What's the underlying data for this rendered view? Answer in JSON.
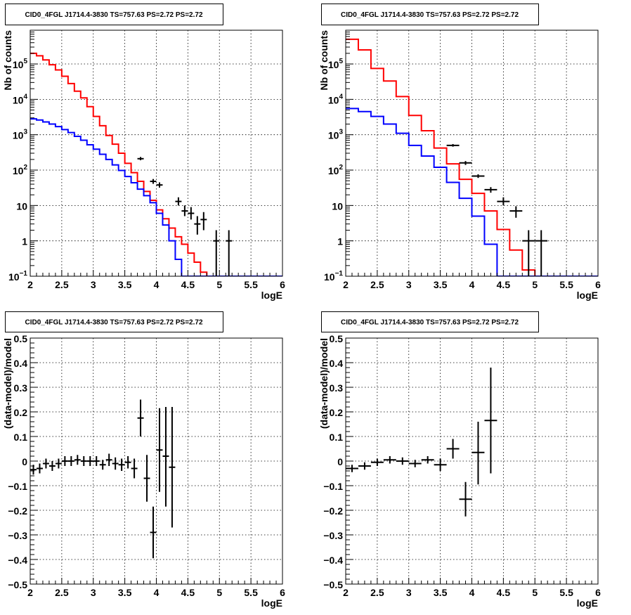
{
  "chart_data": [
    {
      "type": "line",
      "title": "CID0_4FGL J1714.4-3830 TS=757.63 PS=2.72 PS=2.72",
      "xlabel": "logE",
      "ylabel": "Nb of counts",
      "xlim": [
        2,
        6
      ],
      "ylim": [
        0.1,
        900000
      ],
      "yscale": "log",
      "grid": true,
      "x_ticks": [
        "2",
        "2.5",
        "3",
        "3.5",
        "4",
        "4.5",
        "5",
        "5.5",
        "6"
      ],
      "y_ticks": [
        {
          "value": 0.1,
          "base": "10",
          "exp": "−1"
        },
        {
          "value": 1,
          "base": "1",
          "exp": ""
        },
        {
          "value": 10,
          "base": "10",
          "exp": ""
        },
        {
          "value": 100,
          "base": "10",
          "exp": "2"
        },
        {
          "value": 1000,
          "base": "10",
          "exp": "3"
        },
        {
          "value": 10000,
          "base": "10",
          "exp": "4"
        },
        {
          "value": 100000,
          "base": "10",
          "exp": "5"
        }
      ],
      "bin_width": 0.1,
      "series": [
        {
          "kind": "step",
          "color": "#ff0000",
          "values": [
            200000,
            170000,
            130000,
            95000,
            68000,
            45000,
            28000,
            17000,
            11000,
            6200,
            3300,
            1800,
            950,
            540,
            300,
            155,
            85,
            48,
            25,
            14,
            7.5,
            4.2,
            2.3,
            1.3,
            0.8,
            0.45,
            0.25,
            0.13,
            0.1,
            0.1,
            0.1,
            0.1,
            0.1,
            0.1,
            0.1,
            0.1,
            0.1,
            0.1,
            0.1,
            0.1
          ]
        },
        {
          "kind": "step",
          "color": "#0000ff",
          "values": [
            2800,
            2600,
            2300,
            2000,
            1700,
            1400,
            1150,
            900,
            700,
            520,
            390,
            280,
            200,
            140,
            98,
            66,
            44,
            29,
            19,
            12,
            6,
            2.8,
            1.0,
            0.3,
            0.1,
            0.1,
            0.1,
            0.1,
            0.1,
            0.1,
            0.1,
            0.1,
            0.1,
            0.1,
            0.1,
            0.1,
            0.1,
            0.1,
            0.1,
            0.1
          ]
        },
        {
          "kind": "points",
          "color": "#000000",
          "points": [
            {
              "x": 3.75,
              "y": 210,
              "lo": 190,
              "hi": 235
            },
            {
              "x": 3.95,
              "y": 48,
              "lo": 41,
              "hi": 56
            },
            {
              "x": 4.05,
              "y": 38,
              "lo": 32,
              "hi": 45
            },
            {
              "x": 4.35,
              "y": 13,
              "lo": 10,
              "hi": 17
            },
            {
              "x": 4.45,
              "y": 7,
              "lo": 5,
              "hi": 10
            },
            {
              "x": 4.55,
              "y": 6,
              "lo": 4,
              "hi": 9
            },
            {
              "x": 4.65,
              "y": 3,
              "lo": 1.5,
              "hi": 5
            },
            {
              "x": 4.75,
              "y": 4,
              "lo": 2,
              "hi": 6.5
            },
            {
              "x": 4.95,
              "y": 1,
              "lo": 0.1,
              "hi": 2
            },
            {
              "x": 5.15,
              "y": 1,
              "lo": 0.1,
              "hi": 2
            }
          ]
        }
      ]
    },
    {
      "type": "line",
      "title": "CID0_4FGL J1714.4-3830 TS=757.63 PS=2.72 PS=2.72",
      "xlabel": "logE",
      "ylabel": "Nb of counts",
      "xlim": [
        2,
        6
      ],
      "ylim": [
        0.1,
        900000
      ],
      "yscale": "log",
      "grid": true,
      "x_ticks": [
        "2",
        "2.5",
        "3",
        "3.5",
        "4",
        "4.5",
        "5",
        "5.5",
        "6"
      ],
      "y_ticks": [
        {
          "value": 0.1,
          "base": "10",
          "exp": "−1"
        },
        {
          "value": 1,
          "base": "1",
          "exp": ""
        },
        {
          "value": 10,
          "base": "10",
          "exp": ""
        },
        {
          "value": 100,
          "base": "10",
          "exp": "2"
        },
        {
          "value": 1000,
          "base": "10",
          "exp": "3"
        },
        {
          "value": 10000,
          "base": "10",
          "exp": "4"
        },
        {
          "value": 100000,
          "base": "10",
          "exp": "5"
        }
      ],
      "bin_width": 0.2,
      "series": [
        {
          "kind": "step",
          "color": "#ff0000",
          "values": [
            500000,
            250000,
            75000,
            33000,
            12000,
            3500,
            1300,
            420,
            150,
            55,
            22,
            7,
            2.1,
            0.55,
            0.15,
            0.1,
            0.1,
            0.1,
            0.1,
            0.1
          ]
        },
        {
          "kind": "step",
          "color": "#0000ff",
          "values": [
            5500,
            4500,
            3300,
            2000,
            1100,
            500,
            250,
            120,
            45,
            16,
            5,
            0.8,
            0.1,
            0.1,
            0.1,
            0.1,
            0.1,
            0.1,
            0.1,
            0.1
          ]
        },
        {
          "kind": "points",
          "color": "#000000",
          "points": [
            {
              "x": 3.7,
              "y": 500,
              "lo": 460,
              "hi": 545
            },
            {
              "x": 3.9,
              "y": 160,
              "lo": 140,
              "hi": 180
            },
            {
              "x": 4.1,
              "y": 68,
              "lo": 60,
              "hi": 76
            },
            {
              "x": 4.3,
              "y": 28,
              "lo": 23,
              "hi": 33
            },
            {
              "x": 4.5,
              "y": 13,
              "lo": 10,
              "hi": 17
            },
            {
              "x": 4.7,
              "y": 7,
              "lo": 4.5,
              "hi": 9.5
            },
            {
              "x": 4.9,
              "y": 1,
              "lo": 0.1,
              "hi": 2
            },
            {
              "x": 5.1,
              "y": 1,
              "lo": 0.1,
              "hi": 2
            }
          ]
        }
      ]
    },
    {
      "type": "scatter",
      "title": "CID0_4FGL J1714.4-3830 TS=757.63 PS=2.72 PS=2.72",
      "xlabel": "logE",
      "ylabel": "(data-model)/model",
      "xlim": [
        2,
        6
      ],
      "ylim": [
        -0.5,
        0.5
      ],
      "yscale": "linear",
      "grid": true,
      "x_ticks": [
        "2",
        "2.5",
        "3",
        "3.5",
        "4",
        "4.5",
        "5",
        "5.5",
        "6"
      ],
      "y_ticks": [
        {
          "value": -0.5,
          "base": "−0.5",
          "exp": ""
        },
        {
          "value": -0.4,
          "base": "−0.4",
          "exp": ""
        },
        {
          "value": -0.3,
          "base": "−0.3",
          "exp": ""
        },
        {
          "value": -0.2,
          "base": "−0.2",
          "exp": ""
        },
        {
          "value": -0.1,
          "base": "−0.1",
          "exp": ""
        },
        {
          "value": 0,
          "base": "0",
          "exp": ""
        },
        {
          "value": 0.1,
          "base": "0.1",
          "exp": ""
        },
        {
          "value": 0.2,
          "base": "0.2",
          "exp": ""
        },
        {
          "value": 0.3,
          "base": "0.3",
          "exp": ""
        },
        {
          "value": 0.4,
          "base": "0.4",
          "exp": ""
        },
        {
          "value": 0.5,
          "base": "0.5",
          "exp": ""
        }
      ],
      "bin_width": 0.1,
      "series": [
        {
          "kind": "points",
          "color": "#000000",
          "points": [
            {
              "x": 2.05,
              "y": -0.035,
              "lo": -0.055,
              "hi": -0.015
            },
            {
              "x": 2.15,
              "y": -0.03,
              "lo": -0.05,
              "hi": -0.01
            },
            {
              "x": 2.25,
              "y": -0.01,
              "lo": -0.03,
              "hi": 0.01
            },
            {
              "x": 2.35,
              "y": -0.02,
              "lo": -0.04,
              "hi": 0.0
            },
            {
              "x": 2.45,
              "y": -0.01,
              "lo": -0.03,
              "hi": 0.01
            },
            {
              "x": 2.55,
              "y": 0.0,
              "lo": -0.02,
              "hi": 0.02
            },
            {
              "x": 2.65,
              "y": 0.0,
              "lo": -0.02,
              "hi": 0.02
            },
            {
              "x": 2.75,
              "y": 0.005,
              "lo": -0.015,
              "hi": 0.025
            },
            {
              "x": 2.85,
              "y": 0.0,
              "lo": -0.02,
              "hi": 0.02
            },
            {
              "x": 2.95,
              "y": 0.0,
              "lo": -0.02,
              "hi": 0.02
            },
            {
              "x": 3.05,
              "y": 0.0,
              "lo": -0.02,
              "hi": 0.02
            },
            {
              "x": 3.15,
              "y": -0.015,
              "lo": -0.035,
              "hi": 0.005
            },
            {
              "x": 3.25,
              "y": 0.005,
              "lo": -0.02,
              "hi": 0.03
            },
            {
              "x": 3.35,
              "y": -0.01,
              "lo": -0.035,
              "hi": 0.015
            },
            {
              "x": 3.45,
              "y": -0.015,
              "lo": -0.04,
              "hi": 0.01
            },
            {
              "x": 3.55,
              "y": -0.005,
              "lo": -0.03,
              "hi": 0.02
            },
            {
              "x": 3.65,
              "y": -0.03,
              "lo": -0.07,
              "hi": 0.01
            },
            {
              "x": 3.75,
              "y": 0.175,
              "lo": 0.1,
              "hi": 0.25
            },
            {
              "x": 3.85,
              "y": -0.07,
              "lo": -0.165,
              "hi": 0.025
            },
            {
              "x": 3.95,
              "y": -0.29,
              "lo": -0.395,
              "hi": -0.185
            },
            {
              "x": 4.05,
              "y": 0.045,
              "lo": -0.125,
              "hi": 0.215
            },
            {
              "x": 4.15,
              "y": 0.02,
              "lo": -0.185,
              "hi": 0.22
            },
            {
              "x": 4.25,
              "y": -0.025,
              "lo": -0.27,
              "hi": 0.22
            }
          ]
        }
      ]
    },
    {
      "type": "scatter",
      "title": "CID0_4FGL J1714.4-3830 TS=757.63 PS=2.72 PS=2.72",
      "xlabel": "logE",
      "ylabel": "(data-model)/model",
      "xlim": [
        2,
        6
      ],
      "ylim": [
        -0.5,
        0.5
      ],
      "yscale": "linear",
      "grid": true,
      "x_ticks": [
        "2",
        "2.5",
        "3",
        "3.5",
        "4",
        "4.5",
        "5",
        "5.5",
        "6"
      ],
      "y_ticks": [
        {
          "value": -0.5,
          "base": "−0.5",
          "exp": ""
        },
        {
          "value": -0.4,
          "base": "−0.4",
          "exp": ""
        },
        {
          "value": -0.3,
          "base": "−0.3",
          "exp": ""
        },
        {
          "value": -0.2,
          "base": "−0.2",
          "exp": ""
        },
        {
          "value": -0.1,
          "base": "−0.1",
          "exp": ""
        },
        {
          "value": 0,
          "base": "0",
          "exp": ""
        },
        {
          "value": 0.1,
          "base": "0.1",
          "exp": ""
        },
        {
          "value": 0.2,
          "base": "0.2",
          "exp": ""
        },
        {
          "value": 0.3,
          "base": "0.3",
          "exp": ""
        },
        {
          "value": 0.4,
          "base": "0.4",
          "exp": ""
        },
        {
          "value": 0.5,
          "base": "0.5",
          "exp": ""
        }
      ],
      "bin_width": 0.2,
      "series": [
        {
          "kind": "points",
          "color": "#000000",
          "points": [
            {
              "x": 2.1,
              "y": -0.03,
              "lo": -0.045,
              "hi": -0.015
            },
            {
              "x": 2.3,
              "y": -0.02,
              "lo": -0.035,
              "hi": -0.005
            },
            {
              "x": 2.5,
              "y": -0.005,
              "lo": -0.02,
              "hi": 0.01
            },
            {
              "x": 2.7,
              "y": 0.005,
              "lo": -0.01,
              "hi": 0.02
            },
            {
              "x": 2.9,
              "y": 0.0,
              "lo": -0.015,
              "hi": 0.015
            },
            {
              "x": 3.1,
              "y": -0.01,
              "lo": -0.025,
              "hi": 0.005
            },
            {
              "x": 3.3,
              "y": 0.005,
              "lo": -0.01,
              "hi": 0.02
            },
            {
              "x": 3.5,
              "y": -0.015,
              "lo": -0.04,
              "hi": 0.01
            },
            {
              "x": 3.7,
              "y": 0.05,
              "lo": 0.01,
              "hi": 0.09
            },
            {
              "x": 3.9,
              "y": -0.155,
              "lo": -0.225,
              "hi": -0.085
            },
            {
              "x": 4.1,
              "y": 0.035,
              "lo": -0.095,
              "hi": 0.16
            },
            {
              "x": 4.3,
              "y": 0.165,
              "lo": -0.05,
              "hi": 0.38
            }
          ]
        }
      ]
    }
  ]
}
